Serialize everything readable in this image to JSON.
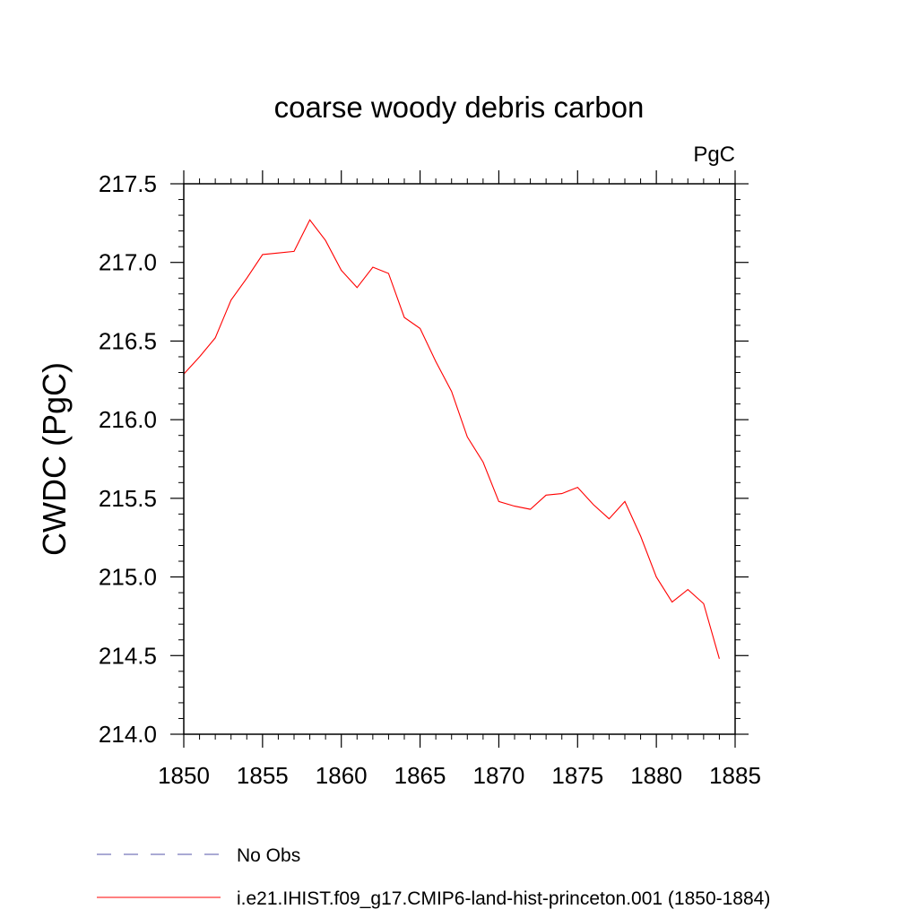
{
  "chart_data": {
    "type": "line",
    "title": "coarse woody debris carbon",
    "units_label": "PgC",
    "ylabel": "CWDC  (PgC)",
    "xlabel": "",
    "xlim": [
      1850,
      1885
    ],
    "ylim": [
      214.0,
      217.5
    ],
    "x_ticks": [
      1850,
      1855,
      1860,
      1865,
      1870,
      1875,
      1880,
      1885
    ],
    "x_tick_labels": [
      "1850",
      "1855",
      "1860",
      "1865",
      "1870",
      "1875",
      "1880",
      "1885"
    ],
    "y_ticks": [
      214.0,
      214.5,
      215.0,
      215.5,
      216.0,
      216.5,
      217.0,
      217.5
    ],
    "y_tick_labels": [
      "214.0",
      "214.5",
      "215.0",
      "215.5",
      "216.0",
      "216.5",
      "217.0",
      "217.5"
    ],
    "grid": false,
    "legend_position": "bottom",
    "series": [
      {
        "name": "i.e21.IHIST.f09_g17.CMIP6-land-hist-princeton.001 (1850-1884)",
        "color": "#ff0000",
        "dash": "solid",
        "x": [
          1850,
          1851,
          1852,
          1853,
          1854,
          1855,
          1856,
          1857,
          1858,
          1859,
          1860,
          1861,
          1862,
          1863,
          1864,
          1865,
          1866,
          1867,
          1868,
          1869,
          1870,
          1871,
          1872,
          1873,
          1874,
          1875,
          1876,
          1877,
          1878,
          1879,
          1880,
          1881,
          1882,
          1883,
          1884
        ],
        "values": [
          216.29,
          216.4,
          216.52,
          216.76,
          216.9,
          217.05,
          217.06,
          217.07,
          217.27,
          217.14,
          216.95,
          216.84,
          216.97,
          216.93,
          216.65,
          216.58,
          216.37,
          216.18,
          215.89,
          215.73,
          215.48,
          215.45,
          215.43,
          215.52,
          215.53,
          215.57,
          215.46,
          215.37,
          215.48,
          215.26,
          215.0,
          214.84,
          214.92,
          214.83,
          214.48
        ]
      }
    ],
    "legend": [
      {
        "label": "No Obs",
        "color": "#5555aa",
        "dash": "dashed"
      },
      {
        "label": "i.e21.IHIST.f09_g17.CMIP6-land-hist-princeton.001 (1850-1884)",
        "color": "#ff0000",
        "dash": "solid"
      }
    ]
  }
}
